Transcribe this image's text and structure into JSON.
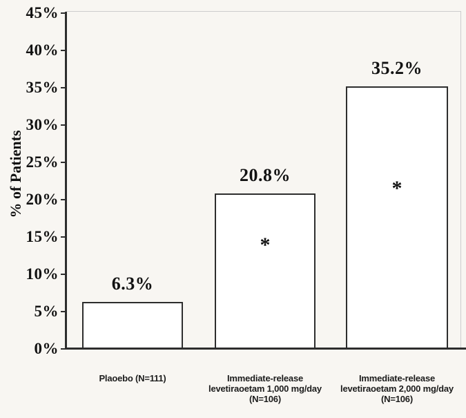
{
  "chart_data": {
    "type": "bar",
    "title": "",
    "xlabel": "",
    "ylabel": "% of Patients",
    "ylim": [
      0,
      45
    ],
    "ytick_step": 5,
    "ytick_labels": [
      "45%",
      "40%",
      "35%",
      "30%",
      "25%",
      "20%",
      "15%",
      "10%",
      "5%",
      "0%"
    ],
    "categories": [
      "Plaoebo (N=111)",
      "Immediate-release\nlevetiraoetam 1,000 mg/day\n(N=106)",
      "Immediate-release\nlevetiraoetam 2,000 mg/day\n(N=106)"
    ],
    "values": [
      6.3,
      20.8,
      35.2
    ],
    "value_labels": [
      "6.3%",
      "20.8%",
      "35.2%"
    ],
    "significance_markers": [
      "",
      "*",
      "*"
    ],
    "grid": false,
    "legend": "none",
    "bar_fill": "#ffffff",
    "bar_border": "#2d2d2d",
    "axis_color": "#2d2d2d",
    "background": "#f8f6f2"
  }
}
